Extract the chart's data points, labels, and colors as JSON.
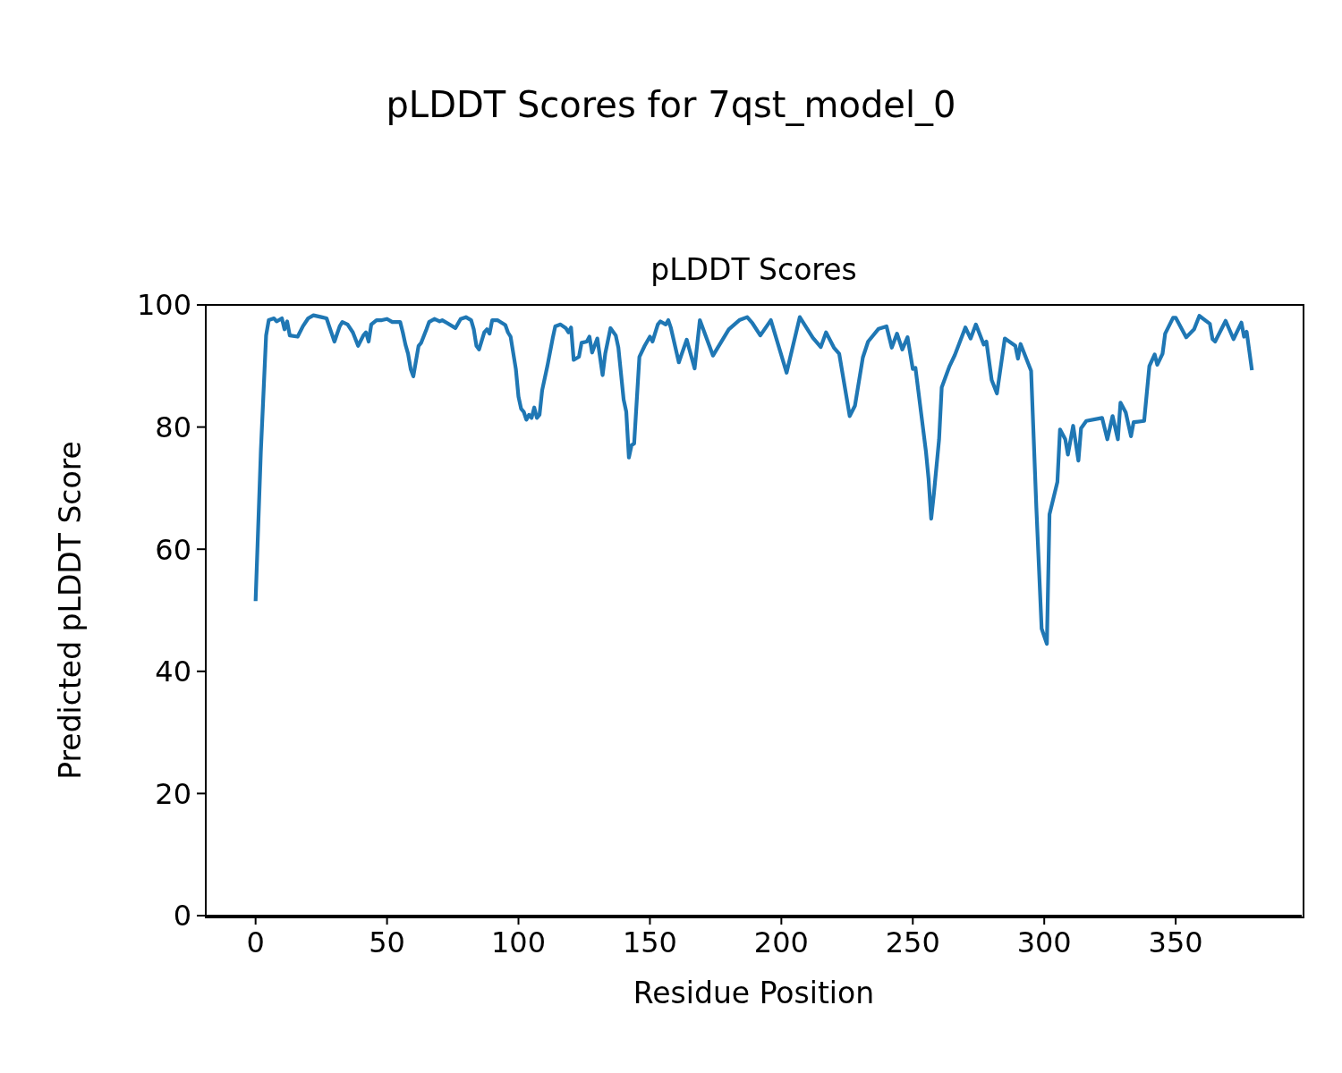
{
  "chart_data": {
    "type": "line",
    "title": "pLDDT Scores for 7qst_model_0",
    "subtitle": "pLDDT Scores",
    "xlabel": "Residue Position",
    "ylabel": "Predicted pLDDT Score",
    "x": [
      0,
      2,
      4,
      5,
      7,
      8,
      10,
      11,
      12,
      13,
      16,
      18,
      20,
      22,
      25,
      27,
      28,
      30,
      32,
      33,
      35,
      37,
      39,
      41,
      42,
      43,
      44,
      46,
      48,
      50,
      52,
      55,
      56,
      57,
      58,
      59,
      60,
      62,
      63,
      65,
      66,
      68,
      70,
      71,
      73,
      76,
      78,
      80,
      82,
      83,
      84,
      85,
      87,
      88,
      89,
      90,
      92,
      95,
      96,
      97,
      99,
      100,
      101,
      102,
      103,
      104,
      105,
      106,
      107,
      108,
      109,
      111,
      113,
      114,
      116,
      118,
      119,
      120,
      121,
      123,
      124,
      126,
      127,
      128,
      130,
      131,
      132,
      133,
      135,
      137,
      138,
      140,
      141,
      142,
      143,
      144,
      146,
      148,
      150,
      151,
      153,
      154,
      156,
      157,
      158,
      161,
      164,
      167,
      169,
      174,
      180,
      184,
      187,
      189,
      192,
      196,
      202,
      207,
      212,
      215,
      217,
      220,
      222,
      226,
      228,
      231,
      233,
      237,
      240,
      242,
      244,
      246,
      248,
      250,
      251,
      255,
      256,
      257,
      258,
      260,
      261,
      264,
      266,
      270,
      272,
      274,
      277,
      278,
      280,
      282,
      285,
      289,
      290,
      291,
      295,
      297,
      299,
      301,
      302,
      305,
      306,
      308,
      309,
      311,
      313,
      314,
      316,
      322,
      324,
      326,
      328,
      329,
      331,
      333,
      334,
      338,
      340,
      342,
      343,
      345,
      346,
      349,
      350,
      354,
      357,
      359,
      363,
      364,
      365,
      369,
      372,
      375,
      376,
      377,
      379
    ],
    "series": [
      {
        "color": "#1f77b4",
        "values": [
          51.5,
          76,
          95,
          97.5,
          97.8,
          97.3,
          97.8,
          96,
          97.3,
          95,
          94.8,
          96.5,
          97.8,
          98.3,
          98,
          97.8,
          96.5,
          94,
          96.5,
          97.2,
          96.8,
          95.5,
          93.3,
          95,
          95.5,
          94,
          96.8,
          97.5,
          97.5,
          97.7,
          97.2,
          97.2,
          95.5,
          93.5,
          92,
          89.5,
          88.3,
          93.3,
          93.8,
          96,
          97.2,
          97.7,
          97.3,
          97.5,
          97,
          96.2,
          97.7,
          98,
          97.5,
          96,
          93.3,
          92.7,
          95.5,
          96,
          95.3,
          97.5,
          97.5,
          96.7,
          95.5,
          94.8,
          89.5,
          85,
          83,
          82.5,
          81.2,
          82,
          81.5,
          83.2,
          81.5,
          82,
          86,
          90,
          94.5,
          96.5,
          96.8,
          96.2,
          95.5,
          96.3,
          91,
          91.5,
          93.8,
          94,
          94.8,
          92.2,
          94.5,
          91.5,
          88.5,
          92,
          96.2,
          95,
          93,
          84.5,
          82.5,
          75,
          77,
          77.3,
          91.5,
          93.3,
          94.8,
          94,
          96.8,
          97.3,
          96.8,
          97.5,
          96.2,
          90.6,
          94.3,
          89.6,
          97.5,
          91.7,
          96,
          97.5,
          98,
          97,
          95,
          97.5,
          88.9,
          98,
          94.6,
          93.1,
          95.5,
          93,
          92,
          81.8,
          83.5,
          91.4,
          94,
          96.1,
          96.5,
          93,
          95.3,
          92.7,
          94.7,
          89.5,
          89.7,
          76,
          71.5,
          65,
          69,
          78,
          86.5,
          90,
          91.8,
          96.3,
          94.5,
          96.8,
          93.5,
          94,
          87.7,
          85.5,
          94.5,
          93.3,
          91.2,
          93.6,
          89.2,
          66.8,
          47,
          44.5,
          65.7,
          71,
          79.6,
          78,
          75.5,
          80.2,
          74.5,
          79.8,
          81,
          81.5,
          78,
          81.8,
          78,
          84,
          82.4,
          78.5,
          80.8,
          81,
          90,
          91.9,
          90.2,
          92,
          95.3,
          97.9,
          97.9,
          94.7,
          96,
          98.2,
          96.9,
          94.4,
          94,
          97.4,
          94.4,
          97.1,
          94.8,
          95.6,
          89.3
        ]
      }
    ],
    "xlim": [
      -18.95,
      397.95
    ],
    "ylim": [
      0,
      100
    ],
    "xticks": [
      0,
      50,
      100,
      150,
      200,
      250,
      300,
      350
    ],
    "yticks": [
      0,
      20,
      40,
      60,
      80,
      100
    ]
  }
}
